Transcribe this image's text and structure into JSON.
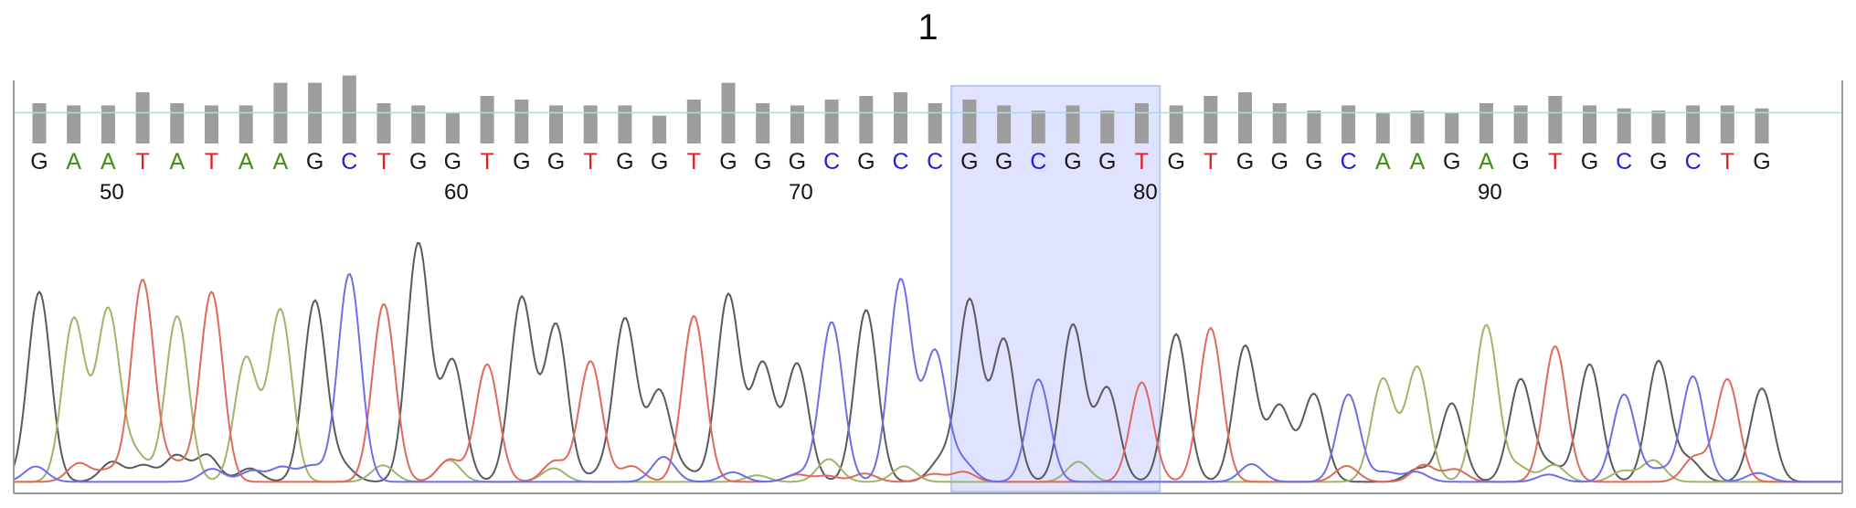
{
  "chart_data": {
    "type": "line",
    "title": "1",
    "bases": [
      "G",
      "A",
      "A",
      "T",
      "A",
      "T",
      "A",
      "A",
      "G",
      "C",
      "T",
      "G",
      "G",
      "T",
      "G",
      "G",
      "T",
      "G",
      "G",
      "T",
      "G",
      "G",
      "G",
      "C",
      "G",
      "C",
      "C",
      "G",
      "G",
      "C",
      "G",
      "G",
      "T",
      "G",
      "T",
      "G",
      "G",
      "G",
      "C",
      "A",
      "A",
      "G",
      "A",
      "G",
      "T",
      "G",
      "C",
      "G",
      "C",
      "T",
      "G"
    ],
    "first_position": 48,
    "position_ticks": [
      50,
      60,
      70,
      80,
      90
    ],
    "quality": [
      0.55,
      0.52,
      0.52,
      0.7,
      0.55,
      0.52,
      0.52,
      0.83,
      0.83,
      0.93,
      0.55,
      0.52,
      0.42,
      0.65,
      0.6,
      0.52,
      0.52,
      0.52,
      0.38,
      0.6,
      0.83,
      0.55,
      0.52,
      0.6,
      0.65,
      0.7,
      0.55,
      0.6,
      0.52,
      0.45,
      0.52,
      0.45,
      0.55,
      0.52,
      0.65,
      0.7,
      0.55,
      0.45,
      0.52,
      0.42,
      0.45,
      0.42,
      0.55,
      0.52,
      0.65,
      0.52,
      0.48,
      0.45,
      0.52,
      0.52,
      0.48
    ],
    "quality_threshold": 0.42,
    "peak_heights": [
      0.63,
      0.54,
      0.57,
      0.67,
      0.55,
      0.63,
      0.41,
      0.57,
      0.6,
      0.69,
      0.59,
      0.79,
      0.4,
      0.39,
      0.61,
      0.52,
      0.4,
      0.54,
      0.3,
      0.55,
      0.62,
      0.39,
      0.39,
      0.53,
      0.57,
      0.67,
      0.43,
      0.6,
      0.47,
      0.34,
      0.52,
      0.31,
      0.33,
      0.49,
      0.51,
      0.45,
      0.25,
      0.29,
      0.29,
      0.34,
      0.38,
      0.26,
      0.52,
      0.34,
      0.45,
      0.39,
      0.29,
      0.4,
      0.35,
      0.34,
      0.31
    ],
    "highlight_range": [
      27,
      32
    ],
    "colors": {
      "G": "#1a1a1a",
      "A": "#3f8f0f",
      "T": "#e02020",
      "C": "#1e1ee0"
    },
    "trace_colors": {
      "G": "#5a5a5a",
      "A": "#9eb56a",
      "T": "#e06a5a",
      "C": "#6e6ee8"
    },
    "quality_bar_color": "#9d9d9d",
    "highlight_color": "#dfe3ff",
    "threshold_line_color": "#9fe0e0"
  }
}
